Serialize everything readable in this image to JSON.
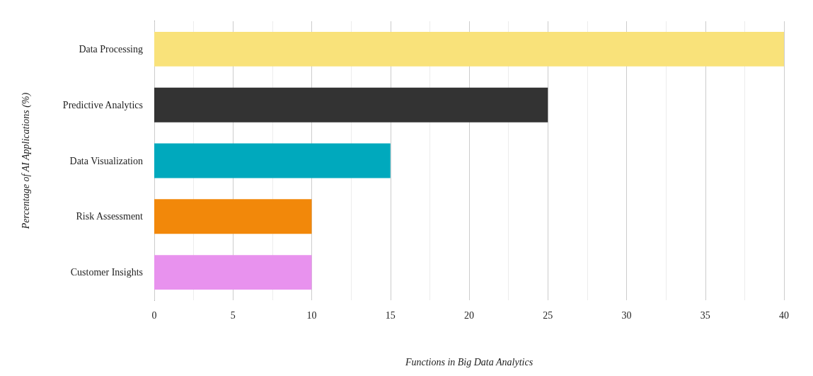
{
  "chart_data": {
    "type": "bar",
    "orientation": "horizontal",
    "xlabel": "Functions in Big Data Analytics",
    "ylabel": "Percentage of AI Applications (%)",
    "categories": [
      "Data Processing",
      "Predictive Analytics",
      "Data Visualization",
      "Risk Assessment",
      "Customer Insights"
    ],
    "values": [
      40,
      25,
      15,
      10,
      10
    ],
    "colors": [
      "#f9e27a",
      "#333333",
      "#00a9bd",
      "#f2880a",
      "#e892ee"
    ],
    "xlim": [
      0,
      40
    ],
    "xticks": [
      0,
      {
        "value": 2.5,
        "label": null
      },
      5,
      {
        "value": 7.5,
        "label": null
      },
      10,
      {
        "value": 12.5,
        "label": null
      },
      15,
      {
        "value": 17.5,
        "label": null
      },
      20,
      {
        "value": 22.5,
        "label": null
      },
      25,
      {
        "value": 27.5,
        "label": null
      },
      30,
      {
        "value": 32.5,
        "label": null
      },
      35,
      {
        "value": 37.5,
        "label": null
      },
      40
    ],
    "grid": "x"
  }
}
